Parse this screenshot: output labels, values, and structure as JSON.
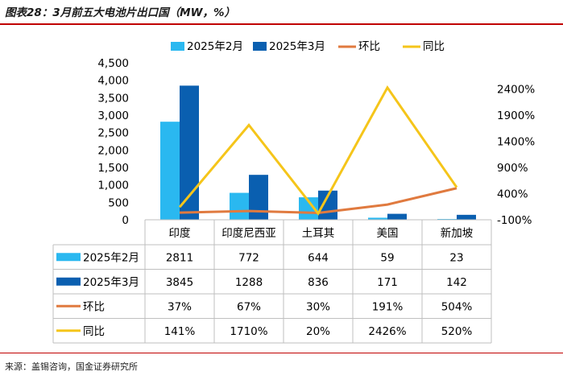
{
  "title": "图表28：3月前五大电池片出口国（MW，%）",
  "source": "来源：盖锡咨询，国金证券研究所",
  "colors": {
    "feb": "#2ab8f0",
    "mar": "#0a5fb0",
    "mom": "#e07a3f",
    "yoy": "#f5c51a",
    "axis": "#bfbfbf",
    "accent": "#c00000"
  },
  "chart_data": {
    "type": "bar",
    "categories": [
      "印度",
      "印度尼西亚",
      "土耳其",
      "美国",
      "新加坡"
    ],
    "series": [
      {
        "name": "2025年2月",
        "type": "bar",
        "axis": "left",
        "values": [
          2811,
          772,
          644,
          59,
          23
        ],
        "labels": [
          "2811",
          "772",
          "644",
          "59",
          "23"
        ]
      },
      {
        "name": "2025年3月",
        "type": "bar",
        "axis": "left",
        "values": [
          3845,
          1288,
          836,
          171,
          142
        ],
        "labels": [
          "3845",
          "1288",
          "836",
          "171",
          "142"
        ]
      },
      {
        "name": "环比",
        "type": "line",
        "axis": "right",
        "values": [
          37,
          67,
          30,
          191,
          504
        ],
        "labels": [
          "37%",
          "67%",
          "30%",
          "191%",
          "504%"
        ]
      },
      {
        "name": "同比",
        "type": "line",
        "axis": "right",
        "values": [
          141,
          1710,
          20,
          2426,
          520
        ],
        "labels": [
          "141%",
          "1710%",
          "20%",
          "2426%",
          "520%"
        ]
      }
    ],
    "y_left": {
      "min": 0,
      "max": 4500,
      "ticks": [
        "0",
        "500",
        "1,000",
        "1,500",
        "2,000",
        "2,500",
        "3,000",
        "3,500",
        "4,000",
        "4,500"
      ]
    },
    "y_right": {
      "min": -100,
      "max": 2900,
      "ticks": [
        "-100%",
        "400%",
        "900%",
        "1400%",
        "1900%",
        "2400%"
      ]
    },
    "legend_position": "top",
    "grid": false
  }
}
